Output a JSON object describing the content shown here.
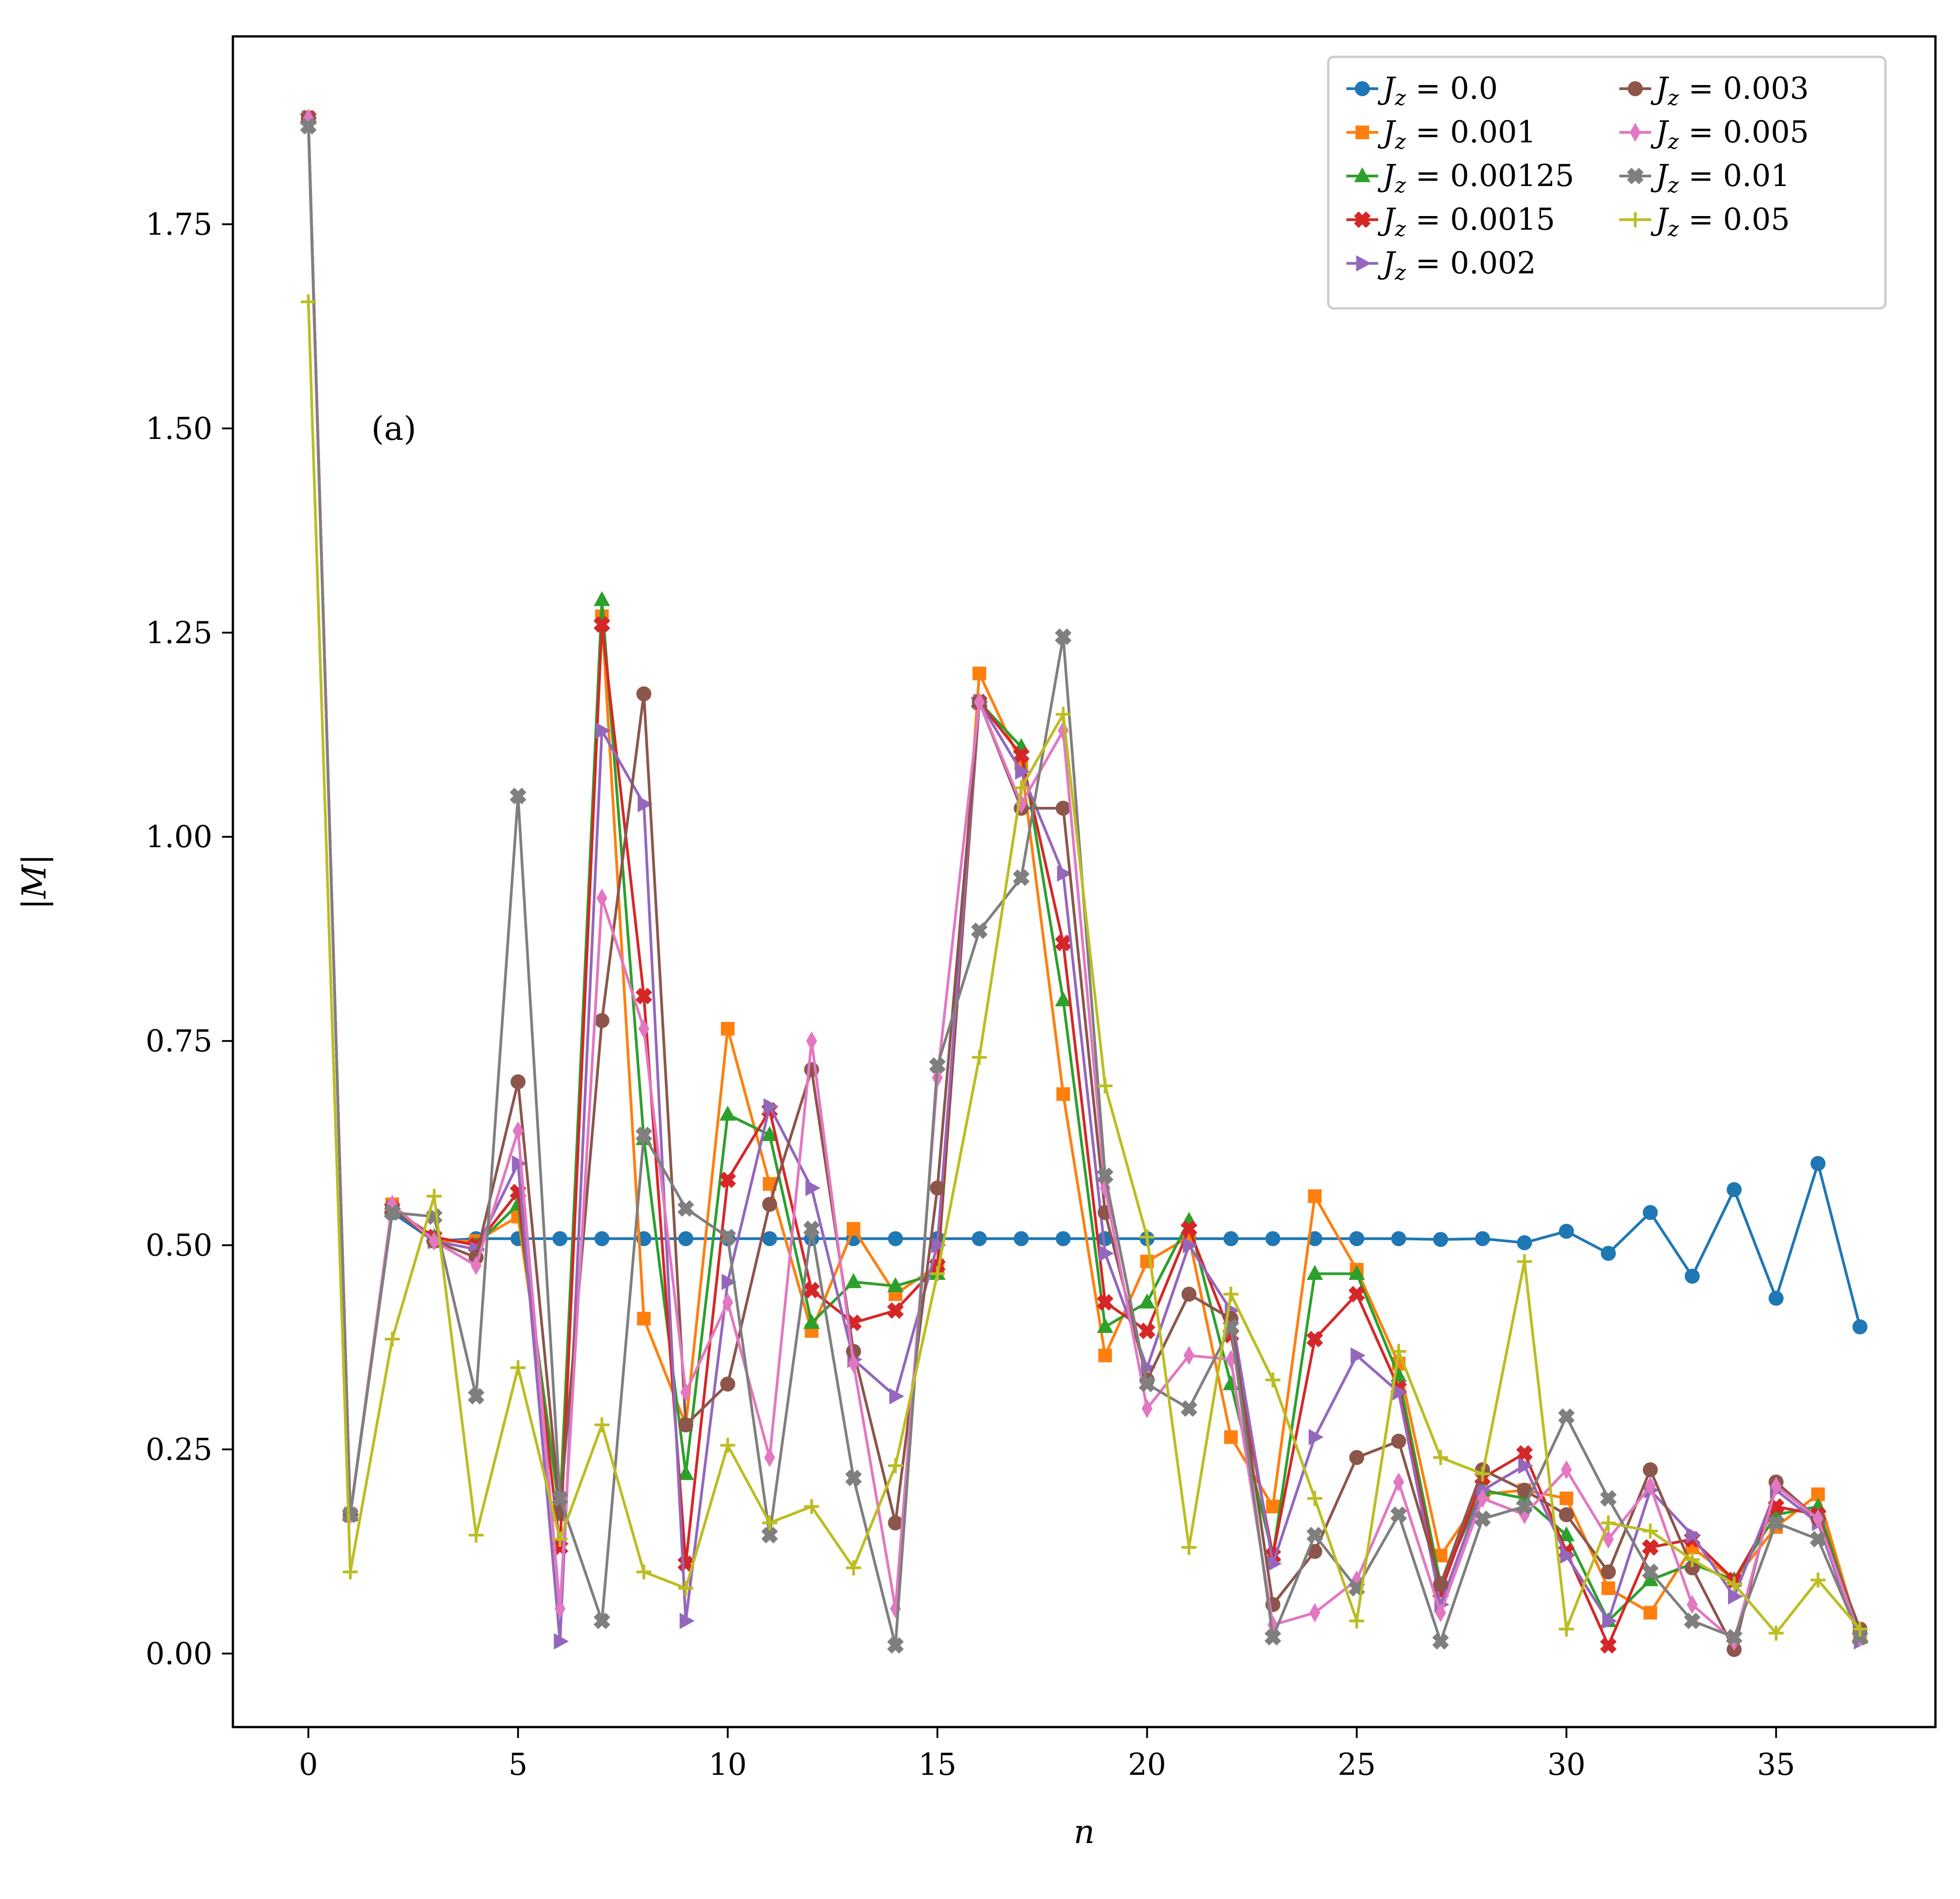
{
  "chart_data": {
    "type": "line",
    "title": "",
    "xlabel": "n",
    "ylabel": "|M|",
    "annotation": "(a)",
    "xlim": [
      -1.8,
      38.8
    ],
    "ylim": [
      -0.09,
      1.98
    ],
    "xticks": [
      0,
      5,
      10,
      15,
      20,
      25,
      30,
      35
    ],
    "yticks": [
      0.0,
      0.25,
      0.5,
      0.75,
      1.0,
      1.25,
      1.5,
      1.75
    ],
    "xtick_labels": [
      "0",
      "5",
      "10",
      "15",
      "20",
      "25",
      "30",
      "35"
    ],
    "ytick_labels": [
      "0.00",
      "0.25",
      "0.50",
      "0.75",
      "1.00",
      "1.25",
      "1.50",
      "1.75"
    ],
    "grid": false,
    "legend_position": "top-right",
    "legend_columns": 2,
    "x": [
      0,
      1,
      2,
      3,
      4,
      5,
      6,
      7,
      8,
      9,
      10,
      11,
      12,
      13,
      14,
      15,
      16,
      17,
      18,
      19,
      20,
      21,
      22,
      23,
      24,
      25,
      26,
      27,
      28,
      29,
      30,
      31,
      32,
      33,
      34,
      35,
      36,
      37
    ],
    "series": [
      {
        "name": "J_z = 0.0",
        "color": "#1f77b4",
        "marker": "circle",
        "values": [
          1.88,
          0.17,
          0.54,
          0.505,
          0.508,
          0.508,
          0.508,
          0.508,
          0.508,
          0.508,
          0.508,
          0.508,
          0.508,
          0.508,
          0.508,
          0.508,
          0.508,
          0.508,
          0.508,
          0.508,
          0.508,
          0.508,
          0.508,
          0.508,
          0.508,
          0.508,
          0.508,
          0.507,
          0.508,
          0.503,
          0.517,
          0.49,
          0.54,
          0.462,
          0.568,
          0.435,
          0.6,
          0.4
        ]
      },
      {
        "name": "J_z = 0.001",
        "color": "#ff7f0e",
        "marker": "square",
        "values": [
          1.88,
          0.17,
          0.55,
          0.505,
          0.505,
          0.535,
          0.18,
          1.27,
          0.41,
          0.28,
          0.765,
          0.575,
          0.395,
          0.52,
          0.44,
          0.475,
          1.2,
          1.09,
          0.685,
          0.365,
          0.48,
          0.51,
          0.265,
          0.18,
          0.56,
          0.47,
          0.355,
          0.12,
          0.195,
          0.2,
          0.19,
          0.08,
          0.05,
          0.13,
          0.09,
          0.155,
          0.195,
          0.02
        ]
      },
      {
        "name": "J_z = 0.00125",
        "color": "#2ca02c",
        "marker": "triangle-up",
        "values": [
          1.88,
          0.17,
          0.545,
          0.51,
          0.5,
          0.55,
          0.17,
          1.29,
          0.63,
          0.22,
          0.66,
          0.635,
          0.405,
          0.455,
          0.45,
          0.465,
          1.165,
          1.11,
          0.8,
          0.4,
          0.43,
          0.53,
          0.33,
          0.12,
          0.465,
          0.465,
          0.34,
          0.085,
          0.2,
          0.19,
          0.145,
          0.04,
          0.09,
          0.11,
          0.09,
          0.17,
          0.18,
          0.02
        ]
      },
      {
        "name": "J_z = 0.0015",
        "color": "#d62728",
        "marker": "plus-filled",
        "values": [
          1.88,
          0.17,
          0.545,
          0.51,
          0.5,
          0.565,
          0.13,
          1.26,
          0.805,
          0.11,
          0.58,
          0.665,
          0.445,
          0.405,
          0.42,
          0.475,
          1.165,
          1.1,
          0.87,
          0.43,
          0.395,
          0.52,
          0.39,
          0.12,
          0.385,
          0.44,
          0.325,
          0.075,
          0.215,
          0.245,
          0.125,
          0.01,
          0.13,
          0.14,
          0.09,
          0.18,
          0.17,
          0.02
        ]
      },
      {
        "name": "J_z = 0.002",
        "color": "#9467bd",
        "marker": "triangle-right",
        "values": [
          1.88,
          0.17,
          0.545,
          0.505,
          0.495,
          0.6,
          0.015,
          1.13,
          1.04,
          0.04,
          0.455,
          0.67,
          0.57,
          0.36,
          0.315,
          0.5,
          1.165,
          1.08,
          0.955,
          0.49,
          0.35,
          0.5,
          0.42,
          0.11,
          0.265,
          0.365,
          0.32,
          0.06,
          0.2,
          0.23,
          0.12,
          0.04,
          0.2,
          0.145,
          0.07,
          0.2,
          0.16,
          0.015
        ]
      },
      {
        "name": "J_z = 0.003",
        "color": "#8c564b",
        "marker": "circle",
        "values": [
          1.88,
          0.17,
          0.545,
          0.505,
          0.485,
          0.7,
          0.175,
          0.775,
          1.175,
          0.28,
          0.33,
          0.55,
          0.715,
          0.37,
          0.16,
          0.57,
          1.165,
          1.035,
          1.035,
          0.54,
          0.335,
          0.44,
          0.41,
          0.06,
          0.125,
          0.24,
          0.26,
          0.085,
          0.225,
          0.2,
          0.17,
          0.1,
          0.225,
          0.105,
          0.005,
          0.21,
          0.165,
          0.03
        ]
      },
      {
        "name": "J_z = 0.005",
        "color": "#e377c2",
        "marker": "diamond-thin",
        "values": [
          1.88,
          0.17,
          0.55,
          0.505,
          0.475,
          0.64,
          0.055,
          0.925,
          0.765,
          0.32,
          0.43,
          0.24,
          0.75,
          0.355,
          0.055,
          0.705,
          1.165,
          1.04,
          1.13,
          0.57,
          0.3,
          0.365,
          0.36,
          0.035,
          0.05,
          0.09,
          0.21,
          0.05,
          0.19,
          0.17,
          0.225,
          0.14,
          0.205,
          0.06,
          0.015,
          0.205,
          0.165,
          0.02
        ]
      },
      {
        "name": "J_z = 0.01",
        "color": "#7f7f7f",
        "marker": "plus-filled",
        "values": [
          1.87,
          0.17,
          0.54,
          0.535,
          0.315,
          1.05,
          0.19,
          0.04,
          0.635,
          0.545,
          0.51,
          0.145,
          0.52,
          0.215,
          0.01,
          0.72,
          0.885,
          0.95,
          1.245,
          0.585,
          0.33,
          0.3,
          0.4,
          0.02,
          0.145,
          0.08,
          0.17,
          0.015,
          0.165,
          0.18,
          0.29,
          0.19,
          0.1,
          0.04,
          0.02,
          0.16,
          0.14,
          0.02
        ]
      },
      {
        "name": "J_z = 0.05",
        "color": "#bcbd22",
        "marker": "plus",
        "values": [
          1.655,
          0.1,
          0.385,
          0.56,
          0.145,
          0.35,
          0.14,
          0.28,
          0.1,
          0.08,
          0.255,
          0.16,
          0.18,
          0.105,
          0.23,
          0.465,
          0.73,
          1.06,
          1.15,
          0.695,
          0.51,
          0.13,
          0.44,
          0.335,
          0.19,
          0.04,
          0.37,
          0.24,
          0.22,
          0.48,
          0.03,
          0.16,
          0.15,
          0.115,
          0.085,
          0.025,
          0.09,
          0.03
        ]
      }
    ],
    "legend_entries": [
      {
        "series": 0,
        "label_prefix": "J",
        "label_sub": "z",
        "label_value": " = 0.0"
      },
      {
        "series": 1,
        "label_prefix": "J",
        "label_sub": "z",
        "label_value": " = 0.001"
      },
      {
        "series": 2,
        "label_prefix": "J",
        "label_sub": "z",
        "label_value": " = 0.00125"
      },
      {
        "series": 3,
        "label_prefix": "J",
        "label_sub": "z",
        "label_value": " = 0.0015"
      },
      {
        "series": 4,
        "label_prefix": "J",
        "label_sub": "z",
        "label_value": " = 0.002"
      },
      {
        "series": 5,
        "label_prefix": "J",
        "label_sub": "z",
        "label_value": " = 0.003"
      },
      {
        "series": 6,
        "label_prefix": "J",
        "label_sub": "z",
        "label_value": " = 0.005"
      },
      {
        "series": 7,
        "label_prefix": "J",
        "label_sub": "z",
        "label_value": " = 0.01"
      },
      {
        "series": 8,
        "label_prefix": "J",
        "label_sub": "z",
        "label_value": " = 0.05"
      }
    ]
  }
}
